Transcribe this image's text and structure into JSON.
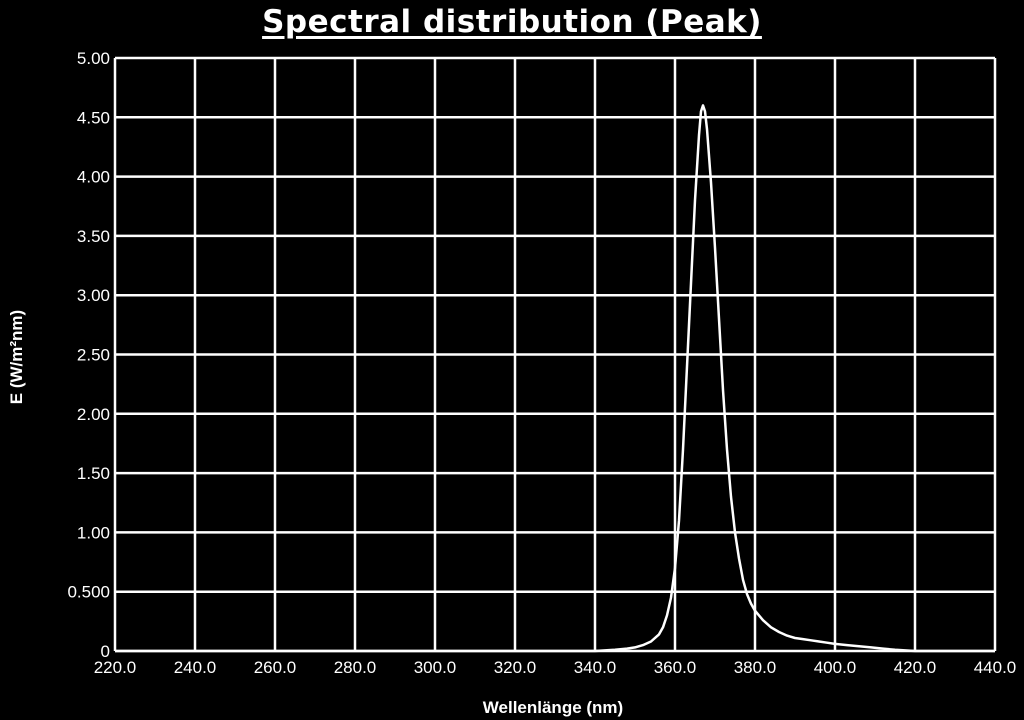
{
  "chart_data": {
    "type": "line",
    "title": "Spectral distribution (Peak)",
    "xlabel": "Wellenlänge (nm)",
    "ylabel": "E (W/m²nm)",
    "xlim": [
      220,
      440
    ],
    "ylim": [
      0,
      5
    ],
    "grid": true,
    "x_ticks": [
      "220.0",
      "240.0",
      "260.0",
      "280.0",
      "300.0",
      "320.0",
      "340.0",
      "360.0",
      "380.0",
      "400.0",
      "420.0",
      "440.0"
    ],
    "y_ticks": [
      "0",
      "0.500",
      "1.00",
      "1.50",
      "2.00",
      "2.50",
      "3.00",
      "3.50",
      "4.00",
      "4.50",
      "5.00"
    ],
    "colors": {
      "background": "#000000",
      "line": "#ffffff",
      "grid": "#ffffff"
    },
    "series": [
      {
        "x": [
          220,
          340,
          345,
          348,
          350,
          352,
          354,
          356,
          357,
          358,
          359,
          360,
          361,
          362,
          363,
          364,
          365,
          366,
          366.5,
          367,
          367.5,
          368,
          369,
          370,
          371,
          372,
          373,
          374,
          375,
          376,
          377,
          378,
          379,
          380,
          382,
          384,
          386,
          388,
          390,
          392,
          394,
          396,
          398,
          400,
          403,
          406,
          409,
          412,
          415,
          420,
          440
        ],
        "y": [
          0,
          0,
          0.01,
          0.02,
          0.03,
          0.05,
          0.08,
          0.14,
          0.2,
          0.3,
          0.45,
          0.7,
          1.1,
          1.7,
          2.4,
          3.1,
          3.8,
          4.35,
          4.55,
          4.6,
          4.55,
          4.4,
          3.95,
          3.4,
          2.8,
          2.2,
          1.7,
          1.3,
          1.0,
          0.78,
          0.6,
          0.48,
          0.4,
          0.34,
          0.26,
          0.2,
          0.16,
          0.13,
          0.11,
          0.1,
          0.09,
          0.08,
          0.07,
          0.06,
          0.05,
          0.04,
          0.03,
          0.02,
          0.01,
          0,
          0
        ]
      }
    ]
  }
}
